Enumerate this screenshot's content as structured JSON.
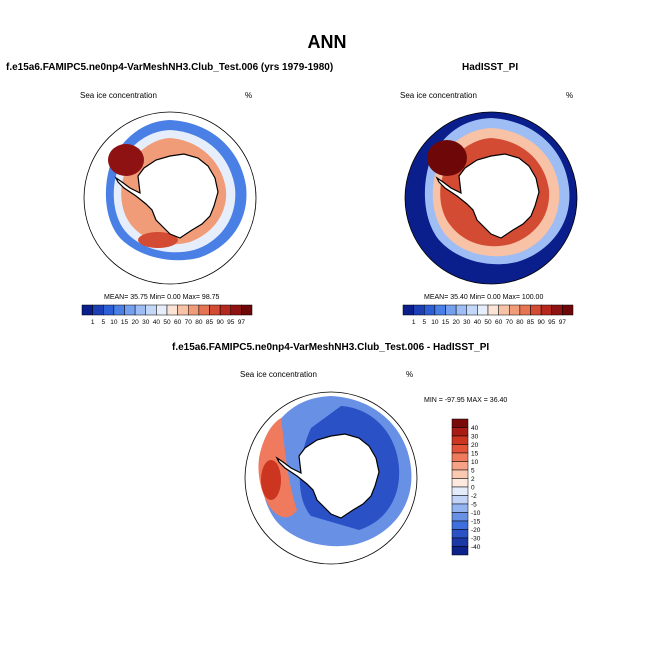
{
  "figure": {
    "title": "ANN",
    "colors": {
      "ice_low": "#0a1e8c",
      "ice_high": "#7a0a0a",
      "land": "#ffffff",
      "coast": "#000000"
    }
  },
  "panels": {
    "model": {
      "title": "f.e15a6.FAMIPC5.ne0np4-VarMeshNH3.Club_Test.006 (yrs 1979-1980)",
      "variable": "Sea ice concentration",
      "units": "%",
      "stats": {
        "mean_label": "MEAN=",
        "mean": "35.75",
        "min_label": "Min=",
        "min": "0.00",
        "max_label": "Max=",
        "max": "98.75"
      }
    },
    "obs": {
      "title": "HadISST_PI",
      "variable": "Sea ice concentration",
      "units": "%",
      "stats": {
        "mean_label": "MEAN=",
        "mean": "35.40",
        "min_label": "Min=",
        "min": "0.00",
        "max_label": "Max=",
        "max": "100.00"
      }
    },
    "diff": {
      "title": "f.e15a6.FAMIPC5.ne0np4-VarMeshNH3.Club_Test.006 - HadISST_PI",
      "variable": "Sea ice concentration",
      "units": "%",
      "stats": {
        "min_label": "MIN =",
        "min": "-97.95",
        "max_label": "MAX =",
        "max": "36.40"
      }
    }
  },
  "colorbars": {
    "concentration": {
      "labels": [
        "1",
        "5",
        "10",
        "15",
        "20",
        "30",
        "40",
        "50",
        "60",
        "70",
        "80",
        "85",
        "90",
        "95",
        "97"
      ],
      "colors": [
        "#0a1e8c",
        "#1c3fb5",
        "#2c5fd6",
        "#4a7fe6",
        "#739fee",
        "#9dbdf4",
        "#c3d7f8",
        "#e6eefb",
        "#fbe3d6",
        "#f8c2a6",
        "#f19c78",
        "#e67352",
        "#d34b33",
        "#b5281e",
        "#8f1212",
        "#6e0808"
      ]
    },
    "difference": {
      "labels": [
        "40",
        "30",
        "20",
        "15",
        "10",
        "5",
        "2",
        "0",
        "-2",
        "-5",
        "-10",
        "-15",
        "-20",
        "-30",
        "-40"
      ],
      "colors": [
        "#7a0a0a",
        "#a81c14",
        "#cc3520",
        "#e2533a",
        "#ef7a5d",
        "#f6a287",
        "#fbc8b2",
        "#fde9de",
        "#e3ecfb",
        "#c1d4f7",
        "#94b4f0",
        "#6891e6",
        "#3f6fdc",
        "#2a52c6",
        "#1a38a6",
        "#0c228a"
      ]
    }
  }
}
